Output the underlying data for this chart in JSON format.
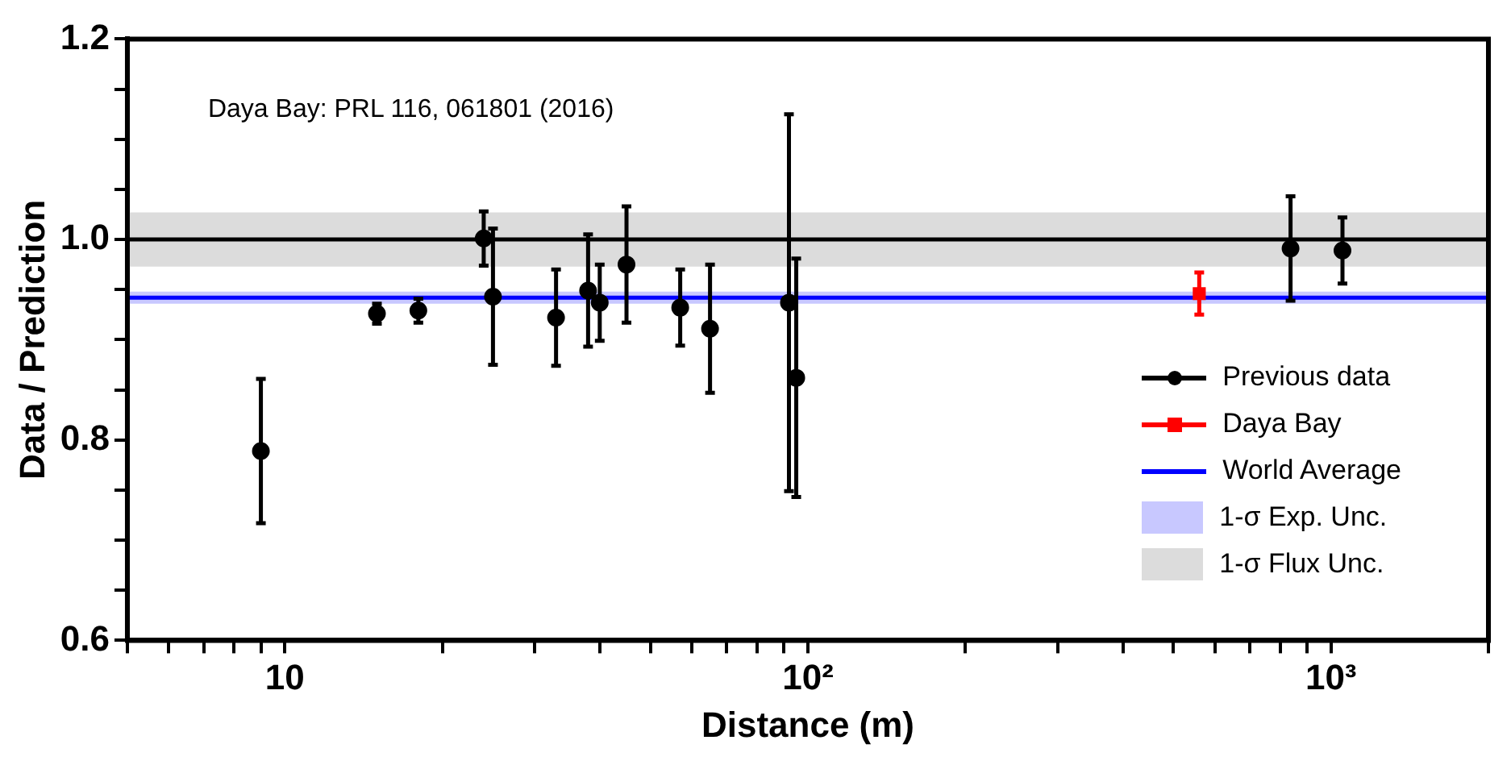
{
  "chart_data": {
    "type": "scatter",
    "xlabel": "Distance (m)",
    "ylabel": "Data / Prediction",
    "log": "x",
    "xlim": [
      5,
      2000
    ],
    "ylim": [
      0.6,
      1.2
    ],
    "xticks": [
      {
        "value": 5,
        "label": null
      },
      {
        "value": 6,
        "label": null
      },
      {
        "value": 7,
        "label": null
      },
      {
        "value": 8,
        "label": null
      },
      {
        "value": 9,
        "label": null
      },
      {
        "value": 10,
        "label": "10"
      },
      {
        "value": 20,
        "label": null
      },
      {
        "value": 30,
        "label": null
      },
      {
        "value": 40,
        "label": null
      },
      {
        "value": 50,
        "label": null
      },
      {
        "value": 60,
        "label": null
      },
      {
        "value": 70,
        "label": null
      },
      {
        "value": 80,
        "label": null
      },
      {
        "value": 90,
        "label": null
      },
      {
        "value": 100,
        "label": "10²"
      },
      {
        "value": 200,
        "label": null
      },
      {
        "value": 300,
        "label": null
      },
      {
        "value": 400,
        "label": null
      },
      {
        "value": 500,
        "label": null
      },
      {
        "value": 600,
        "label": null
      },
      {
        "value": 700,
        "label": null
      },
      {
        "value": 800,
        "label": null
      },
      {
        "value": 900,
        "label": null
      },
      {
        "value": 1000,
        "label": "10³"
      },
      {
        "value": 2000,
        "label": null
      }
    ],
    "yticks": [
      {
        "value": 0.6,
        "label": "0.6"
      },
      {
        "value": 0.65,
        "label": null
      },
      {
        "value": 0.7,
        "label": null
      },
      {
        "value": 0.75,
        "label": null
      },
      {
        "value": 0.8,
        "label": "0.8"
      },
      {
        "value": 0.85,
        "label": null
      },
      {
        "value": 0.9,
        "label": null
      },
      {
        "value": 0.95,
        "label": null
      },
      {
        "value": 1,
        "label": "1.0"
      },
      {
        "value": 1.05,
        "label": null
      },
      {
        "value": 1.1,
        "label": null
      },
      {
        "value": 1.15,
        "label": null
      },
      {
        "value": 1.2,
        "label": "1.2"
      }
    ],
    "series": [
      {
        "name": "Previous data",
        "color": "#000000",
        "marker": "circle",
        "x": [
          9,
          15,
          18,
          24,
          25,
          33,
          38,
          40,
          45,
          57,
          65,
          92,
          95,
          837,
          1052
        ],
        "values": [
          0.789,
          0.926,
          0.929,
          1.001,
          0.943,
          0.922,
          0.949,
          0.937,
          0.975,
          0.932,
          0.911,
          0.937,
          0.862,
          0.991,
          0.989
        ],
        "errors": [
          0.072,
          0.01,
          0.012,
          0.027,
          0.068,
          0.048,
          0.056,
          0.038,
          0.058,
          0.038,
          0.064,
          0.188,
          0.119,
          0.052,
          0.033
        ]
      },
      {
        "name": "Daya Bay",
        "color": "#ff0000",
        "marker": "square",
        "x": [
          560
        ],
        "values": [
          0.946
        ],
        "errors": [
          0.021
        ]
      }
    ],
    "ref_lines": [
      {
        "axis": "y",
        "value": 1,
        "color": "#000000"
      },
      {
        "axis": "y",
        "value": 0.942,
        "label": "World Average",
        "color": "#0000ff"
      }
    ],
    "bands": [
      {
        "axis": "y",
        "from": 0.936,
        "to": 0.948,
        "label": "1-σ Exp. Unc.",
        "color": "#c8c8ff"
      },
      {
        "axis": "y",
        "from": 0.973,
        "to": 1.027,
        "label": "1-σ Flux Unc.",
        "color": "#dcdcdc"
      }
    ],
    "annotations": [
      "Daya Bay: PRL 116, 061801 (2016)"
    ],
    "legend": "bottom right",
    "grid": false
  }
}
